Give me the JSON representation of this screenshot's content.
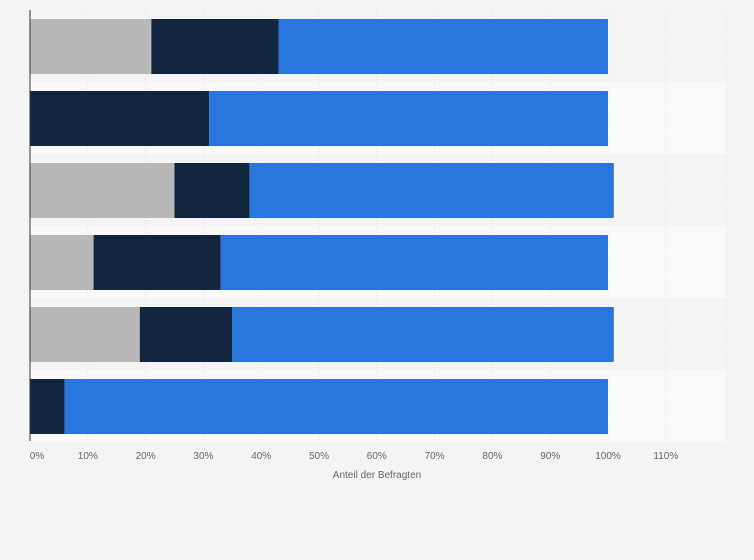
{
  "chart_data": {
    "type": "bar",
    "orientation": "horizontal",
    "stacked": true,
    "categories": [
      "",
      "",
      "",
      "",
      "",
      ""
    ],
    "series": [
      {
        "color": "#b8b8b8",
        "values": [
          21,
          0,
          25,
          11,
          19,
          0
        ]
      },
      {
        "color": "#12263d",
        "values": [
          22,
          31,
          13,
          22,
          16,
          6
        ]
      },
      {
        "color": "#2876dd",
        "values": [
          57,
          69,
          63,
          67,
          66,
          94
        ]
      }
    ],
    "xlim": [
      0,
      120
    ],
    "xticks": [
      0,
      10,
      20,
      30,
      40,
      50,
      60,
      70,
      80,
      90,
      100,
      110
    ],
    "xtick_labels": [
      "0%",
      "10%",
      "20%",
      "30%",
      "40%",
      "50%",
      "60%",
      "70%",
      "80%",
      "90%",
      "100%",
      "110%"
    ],
    "xlabel": "Anteil der Befragten",
    "grid": true,
    "legend": false
  }
}
